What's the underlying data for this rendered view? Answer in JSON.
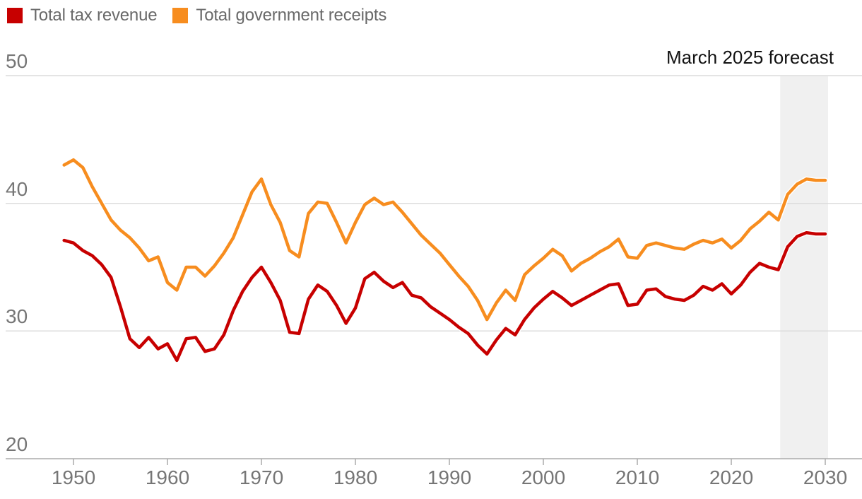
{
  "legend": {
    "items": [
      {
        "id": "tax-revenue",
        "label": "Total tax revenue",
        "color": "#c70000"
      },
      {
        "id": "receipts",
        "label": "Total government receipts",
        "color": "#f78d1f"
      }
    ]
  },
  "annotation": "March 2025 forecast",
  "colors": {
    "tax_revenue_line": "#c70000",
    "receipts_line": "#f78d1f",
    "gridline": "#dcdcdc",
    "axis_line": "#ababab",
    "band": "#f0f0f0",
    "label_text": "#767676",
    "annotation_text": "#121212"
  },
  "chart_data": {
    "type": "line",
    "title": "",
    "xlabel": "",
    "ylabel": "",
    "xlim": [
      1949,
      2030
    ],
    "ylim": [
      20,
      50
    ],
    "grid": "horizontal",
    "legend_position": "top-left",
    "y_ticks": [
      50,
      40,
      30,
      20
    ],
    "x_ticks": [
      1950,
      1960,
      1970,
      1980,
      1990,
      2000,
      2010,
      2020,
      2030
    ],
    "forecast_band": {
      "from": 2025.2,
      "to": 2030.3,
      "label": "March 2025 forecast"
    },
    "x": [
      1949,
      1950,
      1951,
      1952,
      1953,
      1954,
      1955,
      1956,
      1957,
      1958,
      1959,
      1960,
      1961,
      1962,
      1963,
      1964,
      1965,
      1966,
      1967,
      1968,
      1969,
      1970,
      1971,
      1972,
      1973,
      1974,
      1975,
      1976,
      1977,
      1978,
      1979,
      1980,
      1981,
      1982,
      1983,
      1984,
      1985,
      1986,
      1987,
      1988,
      1989,
      1990,
      1991,
      1992,
      1993,
      1994,
      1995,
      1996,
      1997,
      1998,
      1999,
      2000,
      2001,
      2002,
      2003,
      2004,
      2005,
      2006,
      2007,
      2008,
      2009,
      2010,
      2011,
      2012,
      2013,
      2014,
      2015,
      2016,
      2017,
      2018,
      2019,
      2020,
      2021,
      2022,
      2023,
      2024,
      2025,
      2026,
      2027,
      2028,
      2029,
      2030
    ],
    "series": [
      {
        "id": "tax-revenue",
        "name": "Total tax revenue",
        "color": "#c70000",
        "values": [
          37.1,
          36.9,
          36.3,
          35.9,
          35.2,
          34.2,
          31.9,
          29.4,
          28.7,
          29.5,
          28.6,
          29.0,
          27.7,
          29.4,
          29.5,
          28.4,
          28.6,
          29.7,
          31.6,
          33.1,
          34.2,
          35.0,
          33.8,
          32.4,
          29.9,
          29.8,
          32.5,
          33.6,
          33.1,
          32.0,
          30.6,
          31.8,
          34.1,
          34.6,
          33.9,
          33.4,
          33.8,
          32.8,
          32.6,
          31.9,
          31.4,
          30.9,
          30.3,
          29.8,
          28.9,
          28.2,
          29.3,
          30.2,
          29.7,
          30.9,
          31.8,
          32.5,
          33.1,
          32.6,
          32.0,
          32.4,
          32.8,
          33.2,
          33.6,
          33.7,
          32.0,
          32.1,
          33.2,
          33.3,
          32.7,
          32.5,
          32.4,
          32.8,
          33.5,
          33.2,
          33.7,
          32.9,
          33.6,
          34.6,
          35.3,
          35.0,
          34.8,
          36.6,
          37.4,
          37.7,
          37.6,
          37.6
        ]
      },
      {
        "id": "receipts",
        "name": "Total government receipts",
        "color": "#f78d1f",
        "values": [
          43.0,
          43.4,
          42.8,
          41.3,
          40.0,
          38.7,
          37.9,
          37.3,
          36.5,
          35.5,
          35.8,
          33.8,
          33.2,
          35.0,
          35.0,
          34.3,
          35.1,
          36.1,
          37.3,
          39.1,
          40.9,
          41.9,
          39.9,
          38.5,
          36.3,
          35.8,
          39.2,
          40.1,
          40.0,
          38.5,
          36.9,
          38.5,
          39.9,
          40.4,
          39.9,
          40.1,
          39.3,
          38.4,
          37.5,
          36.8,
          36.1,
          35.2,
          34.3,
          33.5,
          32.4,
          30.9,
          32.2,
          33.2,
          32.4,
          34.4,
          35.1,
          35.7,
          36.4,
          35.9,
          34.7,
          35.3,
          35.7,
          36.2,
          36.6,
          37.2,
          35.8,
          35.7,
          36.7,
          36.9,
          36.7,
          36.5,
          36.4,
          36.8,
          37.1,
          36.9,
          37.2,
          36.5,
          37.1,
          38.0,
          38.6,
          39.3,
          38.7,
          40.7,
          41.5,
          41.9,
          41.8,
          41.8
        ]
      }
    ]
  }
}
